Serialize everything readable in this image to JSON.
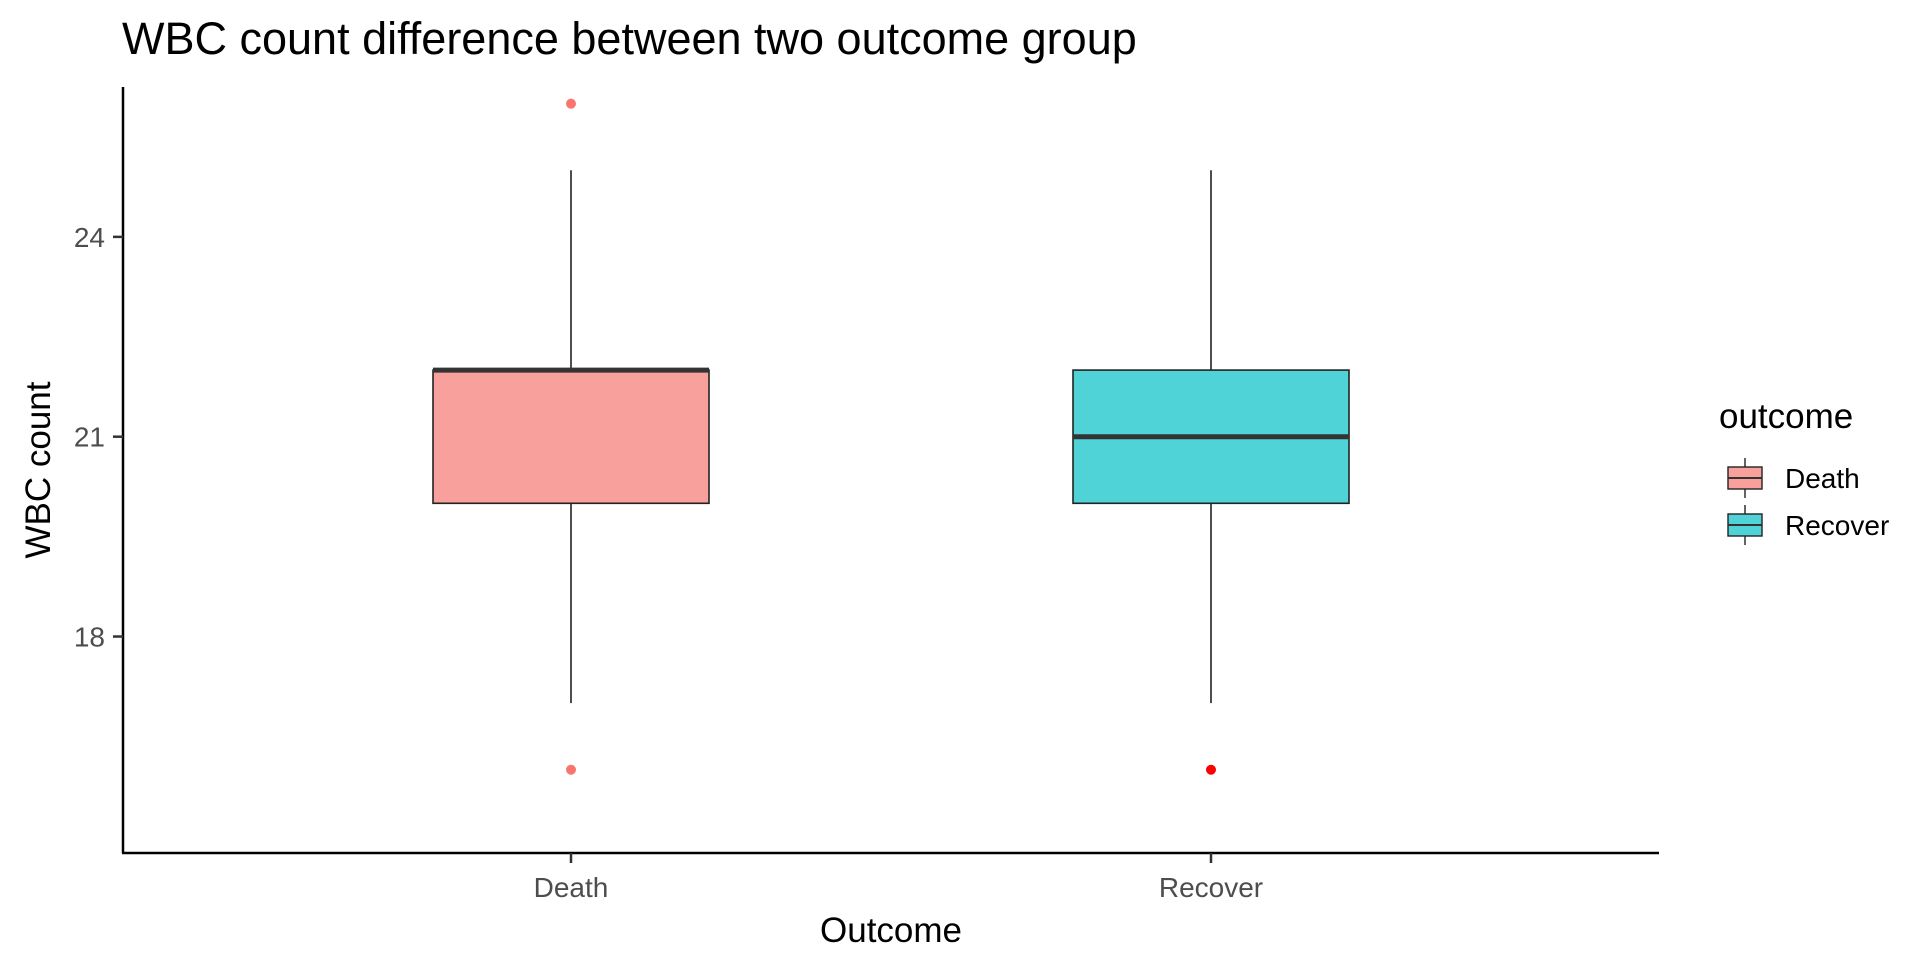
{
  "chart_data": {
    "type": "box",
    "title": "WBC count difference between two outcome group",
    "xlabel": "Outcome",
    "ylabel": "WBC count",
    "categories": [
      "Death",
      "Recover"
    ],
    "ylim": [
      14.75,
      26.25
    ],
    "yticks": [
      18,
      21,
      24
    ],
    "boxes": [
      {
        "category": "Death",
        "min": 17,
        "q1": 20,
        "median": 22,
        "q3": 22,
        "max": 25,
        "outliers": [
          26,
          16
        ]
      },
      {
        "category": "Recover",
        "min": 17,
        "q1": 20,
        "median": 21,
        "q3": 22,
        "max": 25,
        "outliers": [
          16
        ]
      }
    ],
    "legend": {
      "title": "outcome",
      "placement": "right",
      "entries": [
        {
          "label": "Death",
          "color": "#F8A09B"
        },
        {
          "label": "Recover",
          "color": "#4FD3D7"
        }
      ]
    },
    "grid": false,
    "colors": {
      "Death": "#F8A09B",
      "Recover": "#4FD3D7",
      "outlier_death": "#F8766D",
      "outlier_recover": "#FF0000"
    }
  }
}
